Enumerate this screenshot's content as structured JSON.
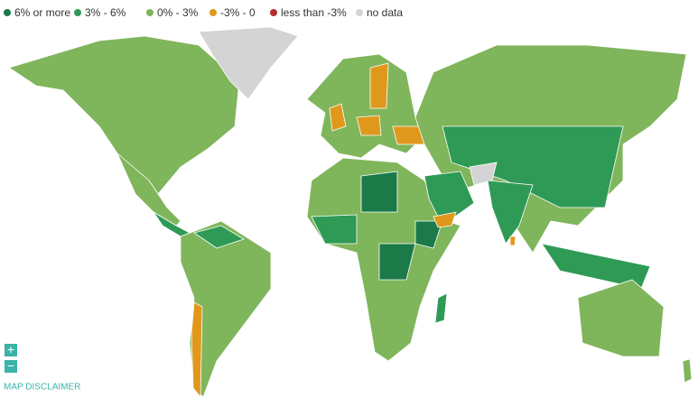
{
  "legend": [
    {
      "label": "6% or more",
      "color": "#1b7a48"
    },
    {
      "label": "3% - 6%",
      "color": "#2f9a56"
    },
    {
      "label": "0% - 3%",
      "color": "#7fb55b"
    },
    {
      "label": "-3% - 0",
      "color": "#e0981c"
    },
    {
      "label": "less than -3%",
      "color": "#b2302e"
    },
    {
      "label": "no data",
      "color": "#d4d4d4"
    }
  ],
  "controls": {
    "zoom_in": "+",
    "zoom_out": "−"
  },
  "disclaimer": "MAP DISCLAIMER"
}
